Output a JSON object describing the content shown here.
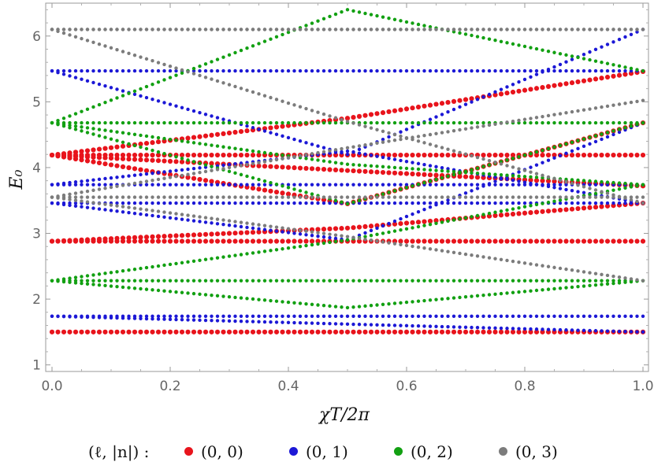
{
  "chart_data": {
    "type": "scatter",
    "title": "",
    "xlabel": "χT/2π",
    "ylabel": "E₀",
    "xlim": [
      0,
      1
    ],
    "ylim": [
      0.9,
      6.5
    ],
    "x_ticks": [
      "0.0",
      "0.2",
      "0.4",
      "0.6",
      "0.8",
      "1.0"
    ],
    "y_ticks": [
      "1",
      "2",
      "3",
      "4",
      "5",
      "6"
    ],
    "grid": false,
    "legend_position": "bottom",
    "legend_title": "(ℓ, |n|) :",
    "series": [
      {
        "name": "(0, 0)",
        "color": "#e8141c",
        "lines": [
          {
            "x": [
              0,
              1
            ],
            "y": [
              1.5,
              1.5
            ]
          },
          {
            "x": [
              0,
              1
            ],
            "y": [
              2.88,
              2.88
            ]
          },
          {
            "x": [
              0,
              1
            ],
            "y": [
              4.19,
              4.19
            ]
          },
          {
            "x": [
              0,
              0.5,
              1
            ],
            "y": [
              2.88,
              3.08,
              3.46
            ]
          },
          {
            "x": [
              0,
              0.5,
              1
            ],
            "y": [
              4.19,
              4.75,
              5.46
            ]
          },
          {
            "x": [
              0,
              0.5,
              1
            ],
            "y": [
              4.19,
              3.45,
              4.68
            ]
          },
          {
            "x": [
              0,
              1
            ],
            "y": [
              4.19,
              3.72
            ]
          }
        ]
      },
      {
        "name": "(0, 1)",
        "color": "#1c18d6",
        "lines": [
          {
            "x": [
              0,
              1
            ],
            "y": [
              1.74,
              1.74
            ]
          },
          {
            "x": [
              0,
              1
            ],
            "y": [
              3.46,
              3.46
            ]
          },
          {
            "x": [
              0,
              1
            ],
            "y": [
              3.74,
              3.74
            ]
          },
          {
            "x": [
              0,
              1
            ],
            "y": [
              5.47,
              5.47
            ]
          },
          {
            "x": [
              0,
              1
            ],
            "y": [
              1.74,
              1.5
            ]
          },
          {
            "x": [
              0,
              0.5,
              1
            ],
            "y": [
              5.47,
              4.2,
              6.1
            ]
          },
          {
            "x": [
              0,
              0.5,
              1
            ],
            "y": [
              3.46,
              2.9,
              4.68
            ]
          },
          {
            "x": [
              0,
              0.5,
              1
            ],
            "y": [
              3.74,
              4.25,
              3.46
            ]
          }
        ]
      },
      {
        "name": "(0, 2)",
        "color": "#12a012",
        "lines": [
          {
            "x": [
              0,
              1
            ],
            "y": [
              2.28,
              2.28
            ]
          },
          {
            "x": [
              0,
              1
            ],
            "y": [
              4.68,
              4.68
            ]
          },
          {
            "x": [
              0,
              0.5,
              1
            ],
            "y": [
              2.28,
              1.87,
              2.28
            ]
          },
          {
            "x": [
              0,
              0.5,
              1
            ],
            "y": [
              4.68,
              3.45,
              4.68
            ]
          },
          {
            "x": [
              0,
              0.5,
              1
            ],
            "y": [
              4.68,
              6.4,
              5.47
            ]
          },
          {
            "x": [
              0,
              0.5,
              1
            ],
            "y": [
              4.68,
              4.05,
              3.74
            ]
          },
          {
            "x": [
              0,
              0.5,
              1
            ],
            "y": [
              2.28,
              2.9,
              3.74
            ]
          }
        ]
      },
      {
        "name": "(0, 3)",
        "color": "#7c7c7c",
        "lines": [
          {
            "x": [
              0,
              1
            ],
            "y": [
              3.55,
              3.55
            ]
          },
          {
            "x": [
              0,
              1
            ],
            "y": [
              6.1,
              6.1
            ]
          },
          {
            "x": [
              0,
              0.5,
              1
            ],
            "y": [
              3.55,
              2.95,
              2.28
            ]
          },
          {
            "x": [
              0,
              0.5,
              1
            ],
            "y": [
              6.1,
              4.7,
              3.46
            ]
          },
          {
            "x": [
              0,
              0.5,
              1
            ],
            "y": [
              6.1,
              6.1,
              6.1
            ]
          },
          {
            "x": [
              0,
              0.5,
              1
            ],
            "y": [
              3.55,
              4.3,
              5.02
            ]
          }
        ]
      }
    ]
  }
}
